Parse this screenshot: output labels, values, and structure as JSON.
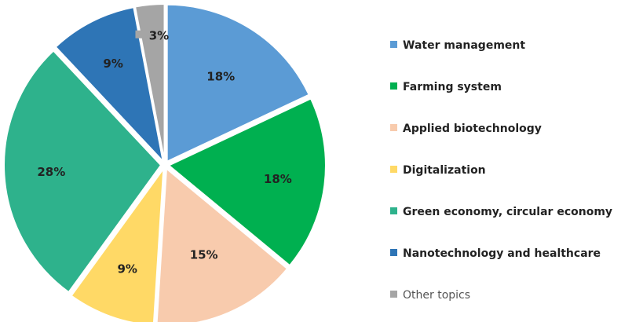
{
  "chart_data": {
    "type": "pie",
    "title": "",
    "legend_position": "right",
    "slices": [
      {
        "name": "Water management",
        "value": 18,
        "label": "18%",
        "color": "#5b9bd5"
      },
      {
        "name": "Farming system",
        "value": 18,
        "label": "18%",
        "color": "#00b050"
      },
      {
        "name": "Applied biotechnology",
        "value": 15,
        "label": "15%",
        "color": "#f8cbad"
      },
      {
        "name": "Digitalization",
        "value": 9,
        "label": "9%",
        "color": "#ffd966"
      },
      {
        "name": "Green economy, circular economy",
        "value": 28,
        "label": "28%",
        "color": "#2eb28c"
      },
      {
        "name": "Nanotechnology and healthcare",
        "value": 9,
        "label": "9%",
        "color": "#2e75b6"
      },
      {
        "name": "Other topics",
        "value": 3,
        "label": "3%",
        "color": "#a5a5a5"
      }
    ]
  }
}
